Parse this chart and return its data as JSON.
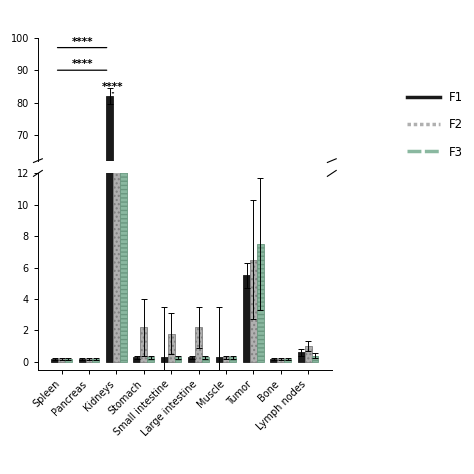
{
  "categories": [
    "Spleen",
    "Pancreas",
    "Kidneys",
    "Stomach",
    "Small intestine",
    "Large intestine",
    "Muscle",
    "Tumor",
    "Bone",
    "Lymph nodes"
  ],
  "F1": [
    0.2,
    0.2,
    82.0,
    0.3,
    0.3,
    0.3,
    0.3,
    5.5,
    0.2,
    0.6
  ],
  "F2": [
    0.2,
    0.2,
    52.0,
    2.2,
    1.8,
    2.2,
    0.3,
    6.5,
    0.2,
    1.0
  ],
  "F3": [
    0.2,
    0.2,
    16.0,
    0.3,
    0.3,
    0.3,
    0.3,
    7.5,
    0.2,
    0.4
  ],
  "F1_err": [
    0.05,
    0.05,
    2.5,
    0.1,
    3.2,
    0.1,
    3.2,
    0.8,
    0.05,
    0.2
  ],
  "F2_err": [
    0.05,
    0.05,
    4.5,
    1.8,
    1.3,
    1.3,
    0.1,
    3.8,
    0.05,
    0.3
  ],
  "F3_err": [
    0.05,
    0.05,
    2.5,
    0.1,
    0.1,
    0.1,
    0.1,
    4.2,
    0.05,
    0.15
  ],
  "color_F1": "#1a1a1a",
  "color_F2": "#b0b0b0",
  "color_F3": "#8ab8a0",
  "hatch_F1": "",
  "hatch_F2": "....",
  "hatch_F3": "----",
  "bar_width": 0.25,
  "legend_labels": [
    "F1",
    "F2",
    "F3"
  ],
  "upper_ylim": [
    62,
    100
  ],
  "lower_ylim": [
    -0.5,
    12
  ],
  "figsize": [
    4.74,
    4.74
  ],
  "dpi": 100
}
